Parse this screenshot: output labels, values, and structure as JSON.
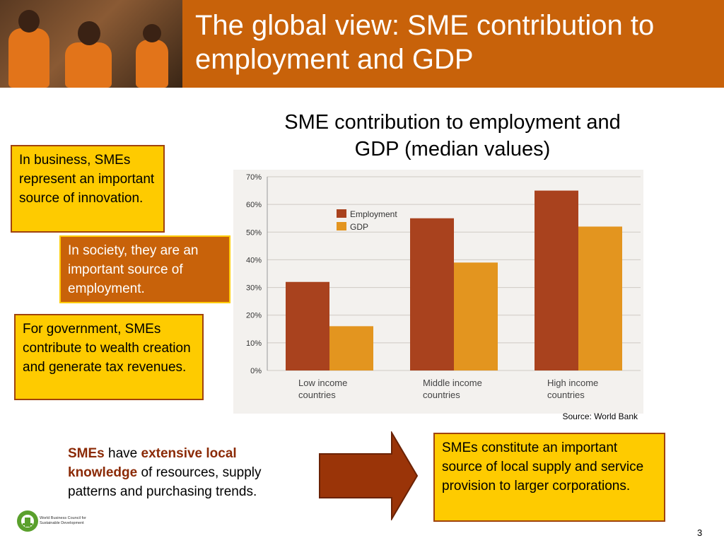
{
  "slide": {
    "title": "The global view: SME contribution to employment and GDP",
    "page_number": "3"
  },
  "callouts": {
    "business": "In business, SMEs represent an important source of innovation.",
    "society": "In society, they are an important source of employment.",
    "government": "For government, SMEs contribute to wealth creation and generate tax revenues.",
    "supply": "SMEs constitute an important source of local supply and service provision to larger corporations."
  },
  "knowledge": {
    "part1": "SMEs",
    "part2": " have ",
    "part3": "extensive local knowledge",
    "part4": " of resources, supply patterns and purchasing trends."
  },
  "source": "Source: World Bank",
  "logo": {
    "line1": "World Business Council for",
    "line2": "Sustainable Development"
  },
  "colors": {
    "employment": "#a9421e",
    "gdp": "#e3951f",
    "header": "#c8620a",
    "callout_yellow": "#fecb00"
  },
  "chart_data": {
    "type": "bar",
    "title": "SME contribution to employment and GDP (median values)",
    "categories": [
      "Low income\ncountries",
      "Middle income\ncountries",
      "High income\ncountries"
    ],
    "series": [
      {
        "name": "Employment",
        "values": [
          32,
          55,
          65
        ]
      },
      {
        "name": "GDP",
        "values": [
          16,
          39,
          52
        ]
      }
    ],
    "yticks": [
      "0%",
      "10%",
      "20%",
      "30%",
      "40%",
      "50%",
      "60%",
      "70%"
    ],
    "ylim": [
      0,
      70
    ],
    "grid": true,
    "legend": "top-left",
    "xlabel": "",
    "ylabel": ""
  }
}
